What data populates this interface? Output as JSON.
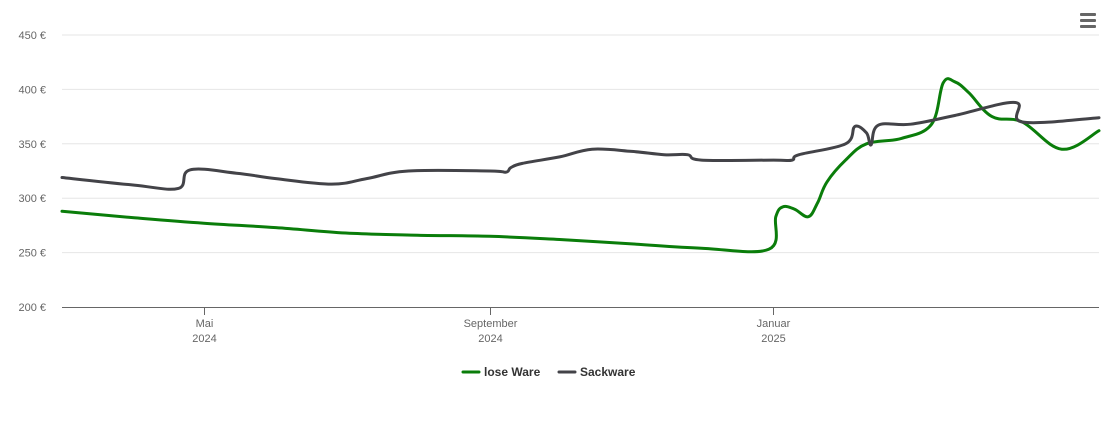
{
  "menu": {
    "icon": "hamburger-menu-icon"
  },
  "chart_data": {
    "type": "line",
    "title": "",
    "xlabel": "",
    "ylabel": "",
    "ylim": [
      200,
      450
    ],
    "y_ticks": [
      200,
      250,
      300,
      350,
      400,
      450
    ],
    "y_tick_labels": [
      "200 €",
      "250 €",
      "300 €",
      "350 €",
      "400 €",
      "450 €"
    ],
    "xlim": [
      "2024-03-01",
      "2025-05-21"
    ],
    "x_ticks": [
      {
        "date": "2024-05-01",
        "month": "Mai",
        "year": "2024"
      },
      {
        "date": "2024-09-01",
        "month": "September",
        "year": "2024"
      },
      {
        "date": "2025-01-01",
        "month": "Januar",
        "year": "2025"
      }
    ],
    "grid": true,
    "legend_position": "bottom-center",
    "series": [
      {
        "name": "lose Ware",
        "color": "#0a7d0a",
        "points": [
          [
            "2024-03-01",
            288
          ],
          [
            "2024-04-01",
            282
          ],
          [
            "2024-05-01",
            277
          ],
          [
            "2024-06-01",
            273
          ],
          [
            "2024-07-01",
            268
          ],
          [
            "2024-08-01",
            266
          ],
          [
            "2024-09-01",
            265
          ],
          [
            "2024-10-01",
            262
          ],
          [
            "2024-11-01",
            258
          ],
          [
            "2024-12-01",
            254
          ],
          [
            "2024-12-30",
            253
          ],
          [
            "2025-01-02",
            283
          ],
          [
            "2025-01-05",
            292
          ],
          [
            "2025-01-10",
            290
          ],
          [
            "2025-01-16",
            283
          ],
          [
            "2025-01-20",
            296
          ],
          [
            "2025-01-24",
            315
          ],
          [
            "2025-02-01",
            335
          ],
          [
            "2025-02-10",
            350
          ],
          [
            "2025-02-25",
            355
          ],
          [
            "2025-03-10",
            368
          ],
          [
            "2025-03-15",
            406
          ],
          [
            "2025-03-20",
            407
          ],
          [
            "2025-03-26",
            397
          ],
          [
            "2025-04-05",
            375
          ],
          [
            "2025-04-18",
            370
          ],
          [
            "2025-05-05",
            345
          ],
          [
            "2025-05-21",
            362
          ]
        ]
      },
      {
        "name": "Sackware",
        "color": "#434348",
        "points": [
          [
            "2024-03-01",
            319
          ],
          [
            "2024-04-01",
            312
          ],
          [
            "2024-04-20",
            309
          ],
          [
            "2024-04-25",
            326
          ],
          [
            "2024-05-15",
            323
          ],
          [
            "2024-06-01",
            318
          ],
          [
            "2024-06-25",
            313
          ],
          [
            "2024-07-10",
            318
          ],
          [
            "2024-07-28",
            325
          ],
          [
            "2024-09-01",
            325
          ],
          [
            "2024-09-08",
            324
          ],
          [
            "2024-09-10",
            328
          ],
          [
            "2024-09-15",
            332
          ],
          [
            "2024-10-01",
            338
          ],
          [
            "2024-10-15",
            345
          ],
          [
            "2024-11-01",
            343
          ],
          [
            "2024-11-15",
            340
          ],
          [
            "2024-11-25",
            340
          ],
          [
            "2024-12-01",
            335
          ],
          [
            "2025-01-01",
            335
          ],
          [
            "2025-01-09",
            335
          ],
          [
            "2025-01-12",
            340
          ],
          [
            "2025-02-01",
            350
          ],
          [
            "2025-02-05",
            366
          ],
          [
            "2025-02-10",
            360
          ],
          [
            "2025-02-12",
            349
          ],
          [
            "2025-02-15",
            367
          ],
          [
            "2025-03-01",
            368
          ],
          [
            "2025-03-20",
            376
          ],
          [
            "2025-04-15",
            388
          ],
          [
            "2025-04-18",
            370
          ],
          [
            "2025-05-21",
            374
          ]
        ]
      }
    ]
  }
}
